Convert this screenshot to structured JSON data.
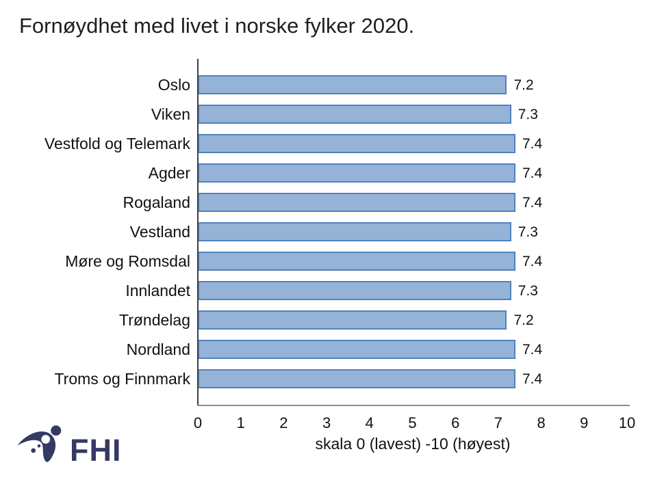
{
  "title": "Fornøydhet med livet i norske fylker 2020.",
  "chart_data": {
    "type": "bar",
    "orientation": "horizontal",
    "title": "Fornøydhet med livet i norske fylker 2020.",
    "categories": [
      "Oslo",
      "Viken",
      "Vestfold og Telemark",
      "Agder",
      "Rogaland",
      "Vestland",
      "Møre og Romsdal",
      "Innlandet",
      "Trøndelag",
      "Nordland",
      "Troms og Finnmark"
    ],
    "values": [
      7.2,
      7.3,
      7.4,
      7.4,
      7.4,
      7.3,
      7.4,
      7.3,
      7.2,
      7.4,
      7.4
    ],
    "value_labels": [
      "7.2",
      "7.3",
      "7.4",
      "7.4",
      "7.4",
      "7.3",
      "7.4",
      "7.3",
      "7.2",
      "7.4",
      "7.4"
    ],
    "xlabel": "skala 0 (lavest) -10 (høyest)",
    "ylabel": "",
    "xlim": [
      0,
      10
    ],
    "x_ticks": [
      "0",
      "1",
      "2",
      "3",
      "4",
      "5",
      "6",
      "7",
      "8",
      "9",
      "10"
    ],
    "grid": false,
    "legend": "none",
    "bar_fill_color": "#95b3d7",
    "bar_border_color": "#4f81bd",
    "axis_line_color": "#404040",
    "baseline_color": "#8c8c8c"
  },
  "logo": {
    "text": "FHI",
    "color": "#343a63",
    "icon": "fhi-swoosh-figure-icon"
  }
}
